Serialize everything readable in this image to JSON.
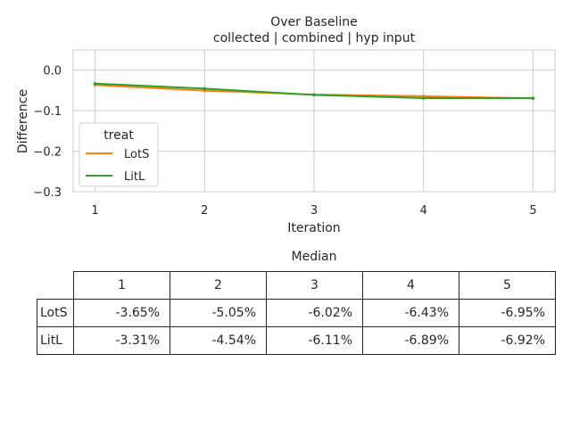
{
  "chart_data": [
    {
      "type": "line",
      "title": "Over Baseline",
      "subtitle": "collected | combined | hyp input",
      "xlabel": "Iteration",
      "ylabel": "Difference",
      "x": [
        1,
        2,
        3,
        4,
        5
      ],
      "xticks": [
        "1",
        "2",
        "3",
        "4",
        "5"
      ],
      "yticks": [
        "0.0",
        "−0.1",
        "−0.2",
        "−0.3"
      ],
      "ytick_values": [
        0.0,
        -0.1,
        -0.2,
        -0.3
      ],
      "xlim": [
        0.8,
        5.2
      ],
      "ylim": [
        -0.3,
        0.05
      ],
      "grid": true,
      "legend": {
        "title": "treat",
        "placement": "lower-left"
      },
      "series": [
        {
          "name": "LotS",
          "color": "#ff7f0e",
          "values": [
            -0.0365,
            -0.0505,
            -0.0602,
            -0.0643,
            -0.0695
          ]
        },
        {
          "name": "LitL",
          "color": "#2ca02c",
          "values": [
            -0.0331,
            -0.0454,
            -0.0611,
            -0.0689,
            -0.0692
          ]
        }
      ]
    },
    {
      "type": "table",
      "title": "Median",
      "columns": [
        "1",
        "2",
        "3",
        "4",
        "5"
      ],
      "rows": [
        {
          "label": "LotS",
          "values": [
            "-3.65%",
            "-5.05%",
            "-6.02%",
            "-6.43%",
            "-6.95%"
          ]
        },
        {
          "label": "LitL",
          "values": [
            "-3.31%",
            "-4.54%",
            "-6.11%",
            "-6.89%",
            "-6.92%"
          ]
        }
      ]
    }
  ]
}
